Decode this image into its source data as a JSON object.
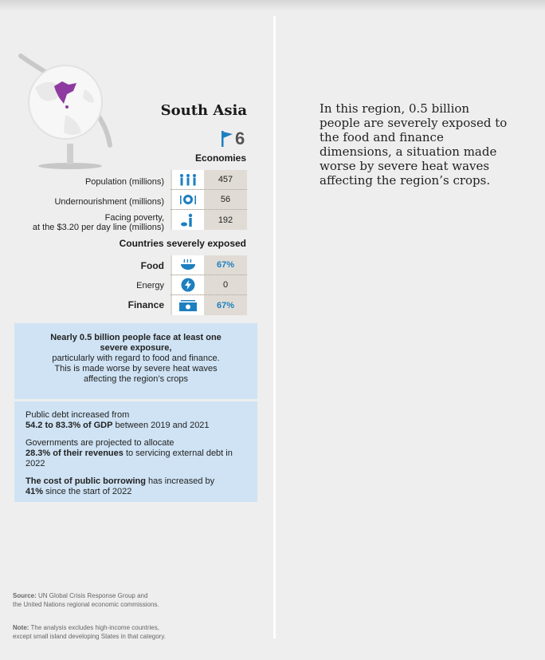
{
  "region": {
    "title": "South Asia",
    "economies_count": "6",
    "economies_label": "Economies"
  },
  "stats": [
    {
      "label": "Population (millions)",
      "icon": "people-icon",
      "value": "457"
    },
    {
      "label": "Undernourishment (millions)",
      "icon": "empty-plate-icon",
      "value": "56"
    },
    {
      "label_line1": "Facing poverty,",
      "label_line2": "at the $3.20 per day line (millions)",
      "icon": "poverty-icon",
      "value": "192"
    }
  ],
  "exposure": {
    "title": "Countries severely exposed",
    "rows": [
      {
        "label": "Food",
        "icon": "food-bowl-icon",
        "value": "67%"
      },
      {
        "label": "Energy",
        "icon": "energy-bolt-icon",
        "value": "0"
      },
      {
        "label": "Finance",
        "icon": "money-icon",
        "value": "67%"
      }
    ]
  },
  "box1": {
    "bold_line1": "Nearly 0.5 billion people face at least one",
    "bold_line2": "severe exposure,",
    "line3": "particularly with regard to food and finance.",
    "line4": "This is made worse by severe heat waves",
    "line5": "affecting the region’s crops"
  },
  "box2": {
    "p1_line1": "Public debt increased from",
    "p1_bold": "54.2 to 83.3% of GDP",
    "p1_rest": " between 2019 and 2021",
    "p2_line1": "Governments are projected to allocate",
    "p2_bold": "28.3% of their revenues",
    "p2_rest": " to servicing external debt in 2022",
    "p3_bold": "The cost of public borrowing",
    "p3_rest": " has increased by",
    "p3_bold2": "41%",
    "p3_rest2": " since the start of 2022"
  },
  "footer": {
    "source_label": "Source:",
    "source_text1": " UN Global Crisis Response Group and",
    "source_text2": "the United Nations regional economic commissions.",
    "note_label": "Note:",
    "note_text1": " The analysis excludes high-income countries,",
    "note_text2": "except small island developing States in that category."
  },
  "narrative": "In this region, 0.5 billion people are severely exposed to the food and finance dimensions, a situation made worse by severe heat waves affecting the region’s crops.",
  "colors": {
    "accent_blue": "#1d7fc0",
    "box_blue": "#cfe3f4",
    "stat_bg": "#e0dcd5",
    "map_purple": "#8e3aa0"
  }
}
